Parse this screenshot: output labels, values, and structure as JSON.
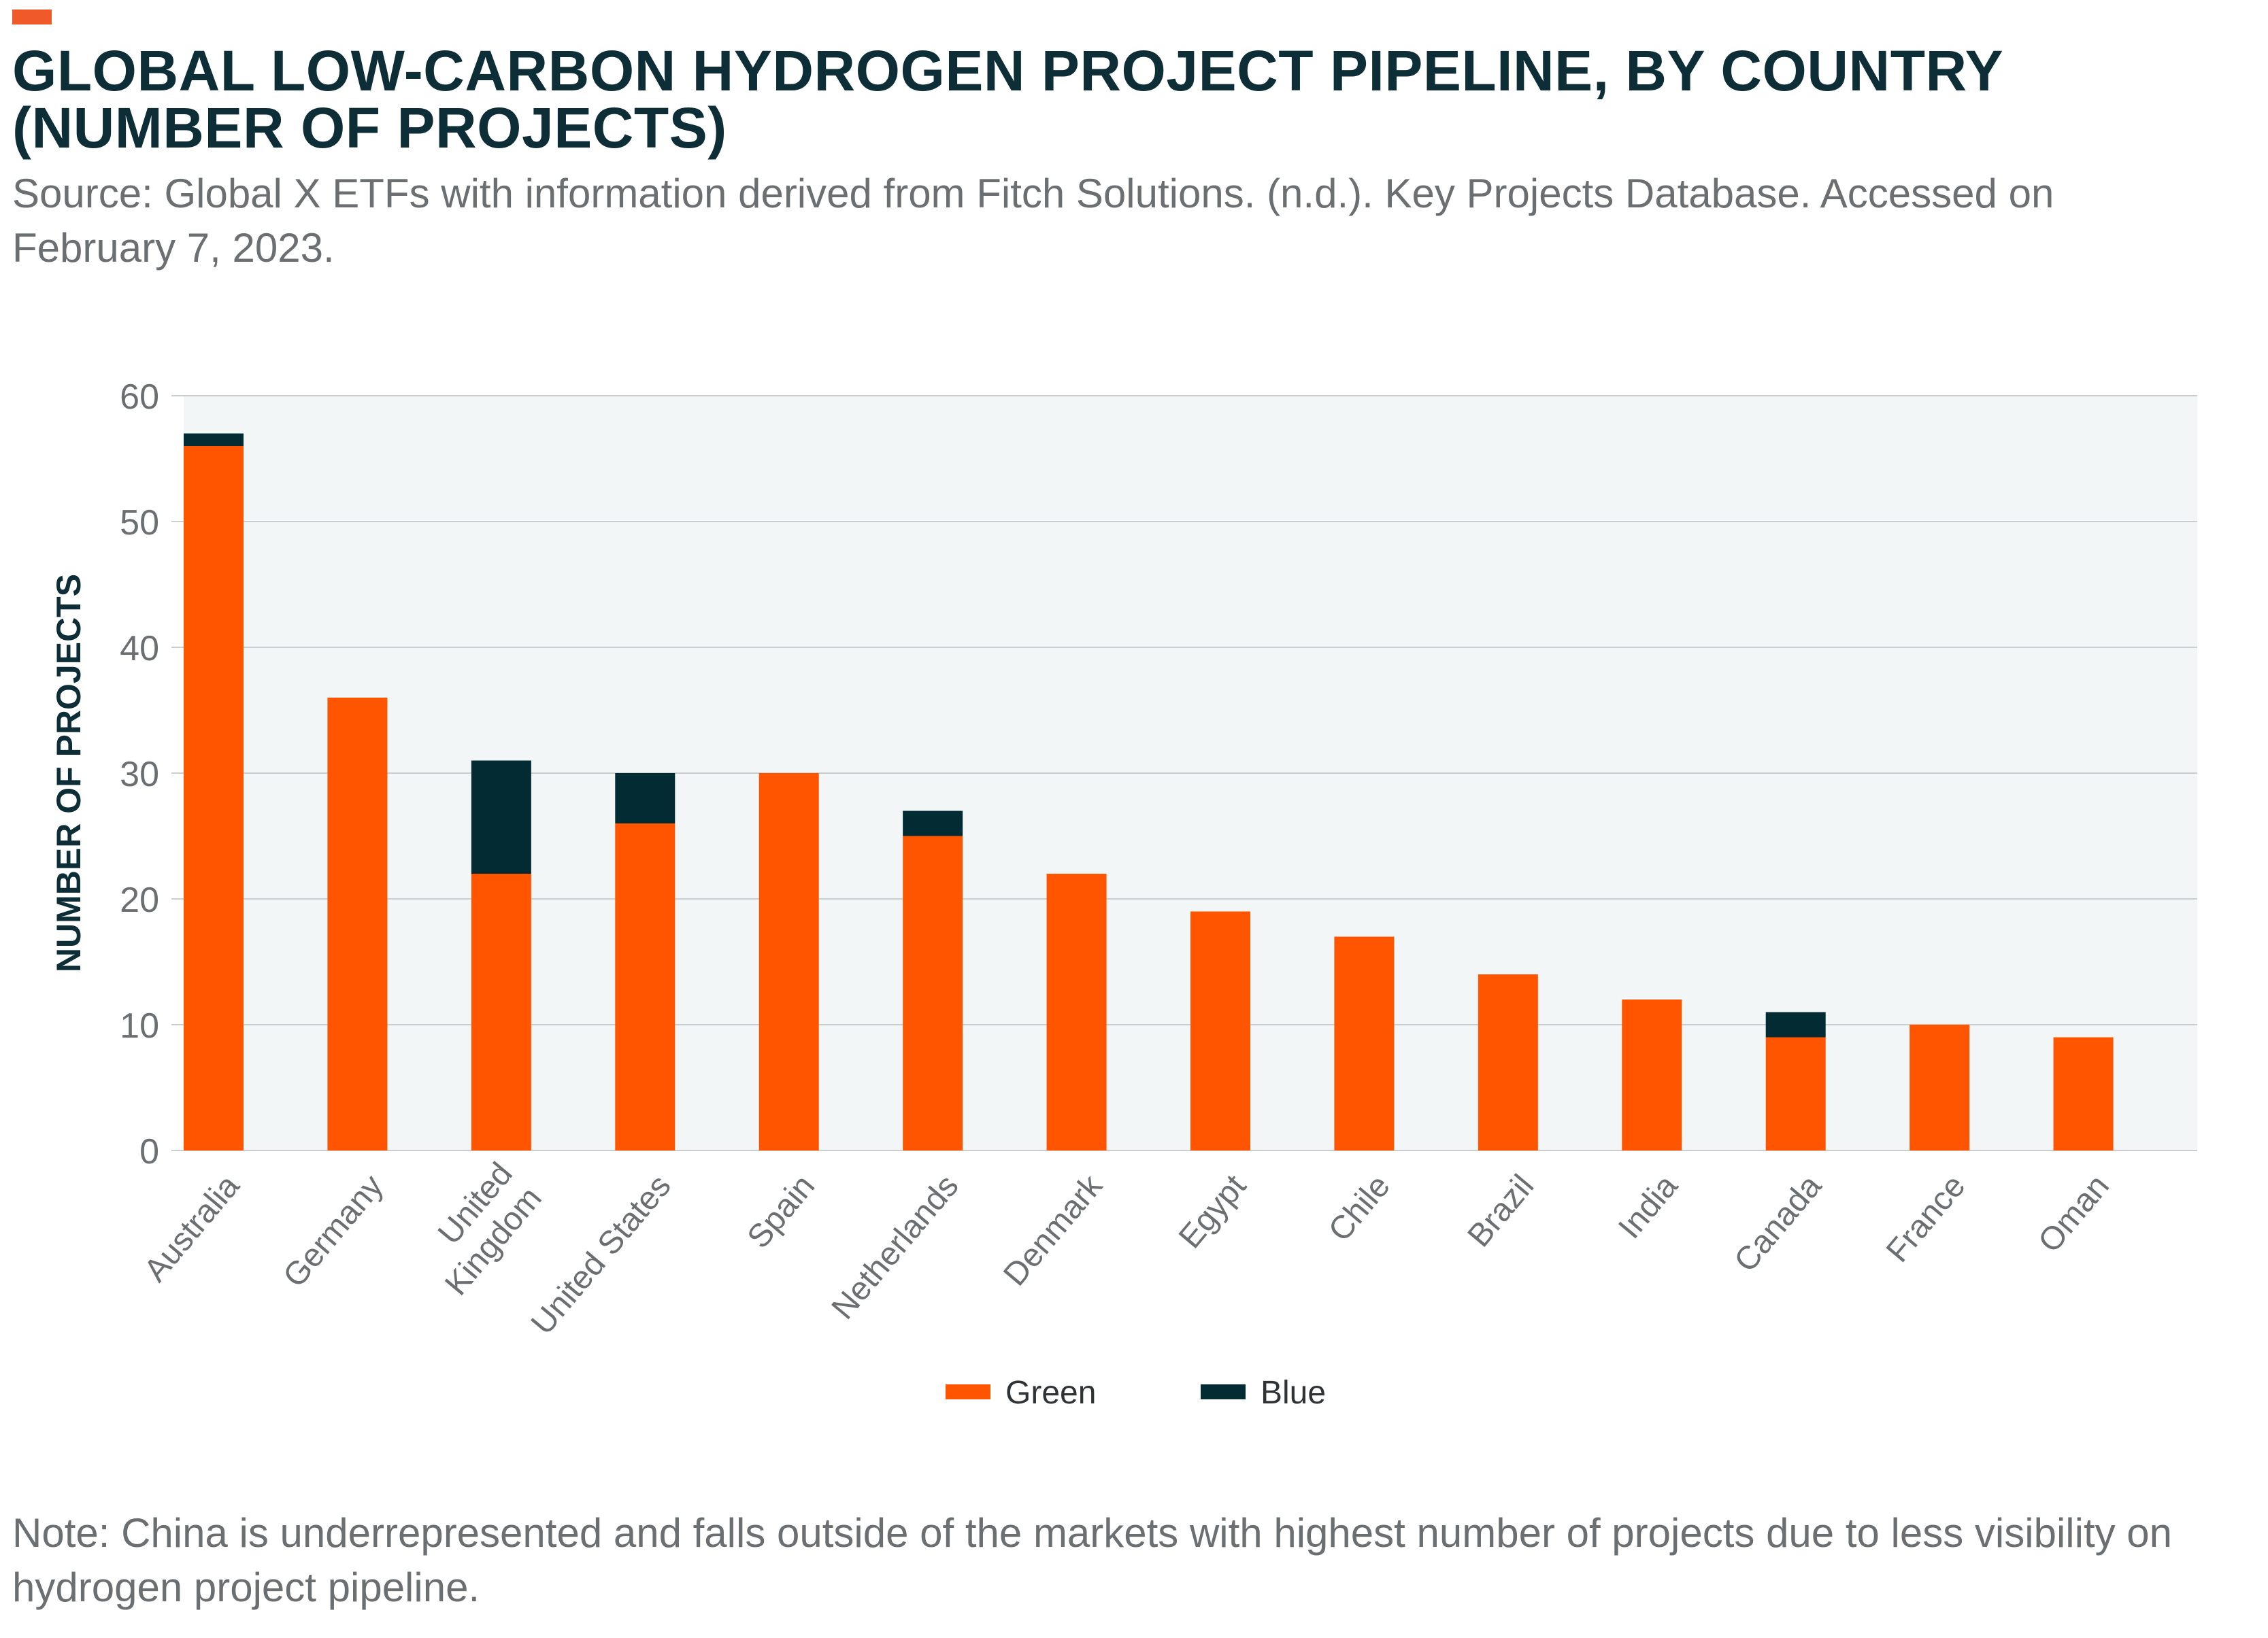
{
  "header": {
    "title": "GLOBAL LOW-CARBON HYDROGEN PROJECT PIPELINE, BY COUNTRY\n(NUMBER OF PROJECTS)",
    "source": "Source: Global X ETFs with information derived from Fitch Solutions. (n.d.). Key Projects Database. Accessed on February 7, 2023."
  },
  "footer": {
    "note": "Note: China is underrepresented and falls outside of the markets with highest number of projects due to less visibility on hydrogen project pipeline."
  },
  "colors": {
    "accent": "#f05a28",
    "green_series": "#ff5500",
    "blue_series": "#022b33",
    "plot_bg": "#f2f6f6",
    "grid": "#c9cfd1",
    "axis_text": "#6b6f72",
    "title_text": "#0d2e36"
  },
  "chart_data": {
    "type": "bar",
    "stacked": true,
    "categories": [
      "Australia",
      "Germany",
      "United Kingdom",
      "United States",
      "Spain",
      "Netherlands",
      "Denmark",
      "Egypt",
      "Chile",
      "Brazil",
      "India",
      "Canada",
      "France",
      "Oman"
    ],
    "series": [
      {
        "name": "Green",
        "values": [
          56,
          36,
          22,
          26,
          30,
          25,
          22,
          19,
          17,
          14,
          12,
          9,
          10,
          9
        ]
      },
      {
        "name": "Blue",
        "values": [
          1,
          0,
          9,
          4,
          0,
          2,
          0,
          0,
          0,
          0,
          0,
          2,
          0,
          0
        ]
      }
    ],
    "title": "GLOBAL LOW-CARBON HYDROGEN PROJECT PIPELINE, BY COUNTRY (NUMBER OF PROJECTS)",
    "xlabel": "",
    "ylabel": "NUMBER OF PROJECTS",
    "ylim": [
      0,
      60
    ],
    "yticks": [
      0,
      10,
      20,
      30,
      40,
      50,
      60
    ],
    "grid": true,
    "legend_position": "bottom-center"
  }
}
